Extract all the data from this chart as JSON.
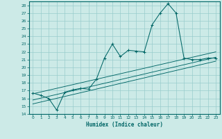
{
  "title": "",
  "xlabel": "Humidex (Indice chaleur)",
  "xlim": [
    -0.5,
    23.5
  ],
  "ylim": [
    14,
    28.5
  ],
  "yticks": [
    14,
    15,
    16,
    17,
    18,
    19,
    20,
    21,
    22,
    23,
    24,
    25,
    26,
    27,
    28
  ],
  "xticks": [
    0,
    1,
    2,
    3,
    4,
    5,
    6,
    7,
    8,
    9,
    10,
    11,
    12,
    13,
    14,
    15,
    16,
    17,
    18,
    19,
    20,
    21,
    22,
    23
  ],
  "bg_color": "#cceae7",
  "line_color": "#006666",
  "grid_color": "#99cccc",
  "main_line_x": [
    0,
    1,
    2,
    3,
    4,
    5,
    6,
    7,
    8,
    9,
    10,
    11,
    12,
    13,
    14,
    15,
    16,
    17,
    18,
    19,
    20,
    21,
    22,
    23
  ],
  "main_line_y": [
    16.7,
    16.4,
    16.0,
    14.5,
    16.8,
    17.1,
    17.3,
    17.2,
    18.5,
    21.2,
    23.0,
    21.4,
    22.2,
    22.1,
    22.0,
    25.5,
    27.0,
    28.2,
    27.0,
    21.2,
    21.0,
    21.0,
    21.2,
    21.2
  ],
  "reg_line1": [
    [
      0,
      23
    ],
    [
      16.6,
      22.0
    ]
  ],
  "reg_line2": [
    [
      0,
      23
    ],
    [
      15.8,
      21.3
    ]
  ],
  "reg_line3": [
    [
      0,
      23
    ],
    [
      15.3,
      20.8
    ]
  ]
}
